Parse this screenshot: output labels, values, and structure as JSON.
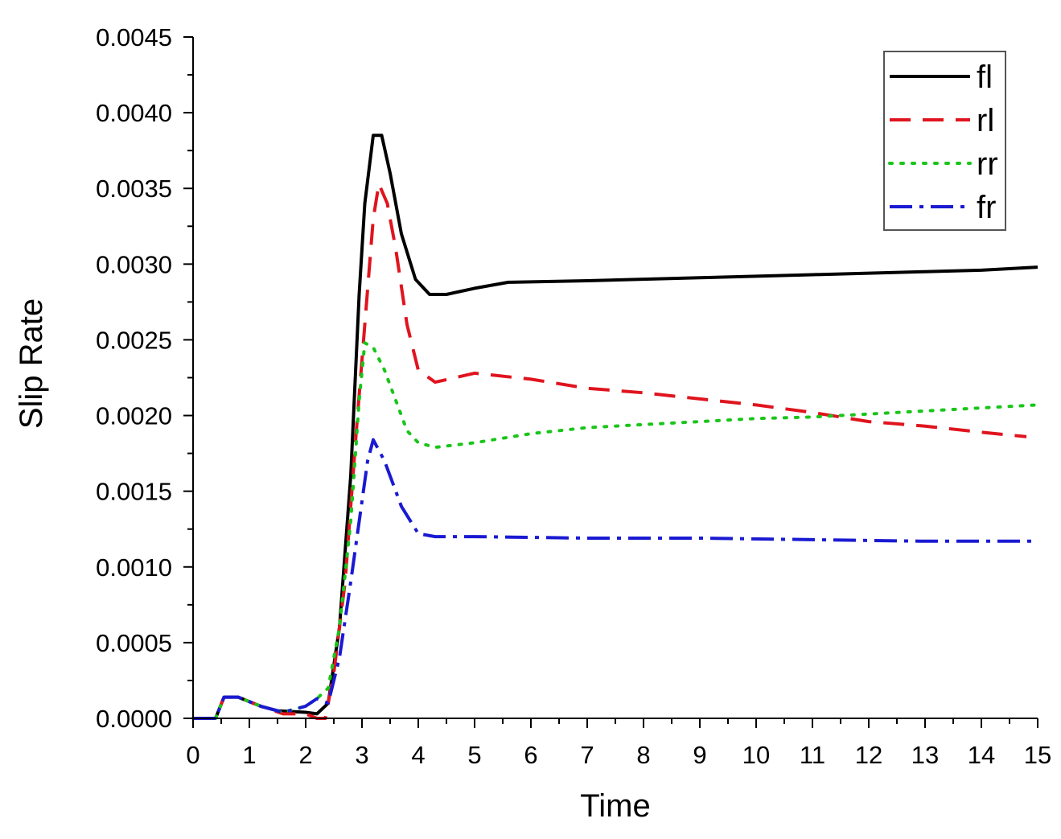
{
  "chart_data": {
    "type": "line",
    "xlabel": "Time",
    "ylabel": "Slip Rate",
    "xlim": [
      0,
      15
    ],
    "ylim": [
      0,
      0.0045
    ],
    "x_ticks": [
      "0",
      "1",
      "2",
      "3",
      "4",
      "5",
      "6",
      "7",
      "8",
      "9",
      "10",
      "11",
      "12",
      "13",
      "14",
      "15"
    ],
    "y_ticks": [
      "0.0000",
      "0.0005",
      "0.0010",
      "0.0015",
      "0.0020",
      "0.0025",
      "0.0030",
      "0.0035",
      "0.0040",
      "0.0045"
    ],
    "grid": false,
    "legend_position": "top-right",
    "series": [
      {
        "name": "fl",
        "color": "#000000",
        "style": "solid",
        "points": [
          [
            0,
            0
          ],
          [
            0.4,
            0
          ],
          [
            0.55,
            0.00014
          ],
          [
            0.8,
            0.00014
          ],
          [
            1.2,
            8e-05
          ],
          [
            1.5,
            5e-05
          ],
          [
            2.0,
            4e-05
          ],
          [
            2.2,
            3e-05
          ],
          [
            2.4,
            0.0001
          ],
          [
            2.6,
            0.0006
          ],
          [
            2.8,
            0.0016
          ],
          [
            2.95,
            0.0028
          ],
          [
            3.05,
            0.0034
          ],
          [
            3.2,
            0.00385
          ],
          [
            3.35,
            0.00385
          ],
          [
            3.5,
            0.0036
          ],
          [
            3.7,
            0.0032
          ],
          [
            3.95,
            0.0029
          ],
          [
            4.2,
            0.0028
          ],
          [
            4.5,
            0.0028
          ],
          [
            5.0,
            0.00284
          ],
          [
            5.6,
            0.00288
          ],
          [
            7,
            0.00289
          ],
          [
            9,
            0.00291
          ],
          [
            11,
            0.00293
          ],
          [
            13,
            0.00295
          ],
          [
            14,
            0.00296
          ],
          [
            15,
            0.00298
          ]
        ]
      },
      {
        "name": "rl",
        "color": "#e0141e",
        "style": "dashed",
        "points": [
          [
            0,
            0
          ],
          [
            0.4,
            0
          ],
          [
            0.55,
            0.00014
          ],
          [
            0.8,
            0.00014
          ],
          [
            1.2,
            8e-05
          ],
          [
            1.6,
            3e-05
          ],
          [
            2.0,
            3e-05
          ],
          [
            2.2,
            0.0
          ],
          [
            2.35,
            0.0
          ],
          [
            2.5,
            0.0003
          ],
          [
            2.7,
            0.0009
          ],
          [
            2.9,
            0.0019
          ],
          [
            3.05,
            0.0026
          ],
          [
            3.2,
            0.0033
          ],
          [
            3.3,
            0.00353
          ],
          [
            3.45,
            0.0034
          ],
          [
            3.6,
            0.0031
          ],
          [
            3.8,
            0.0026
          ],
          [
            4.0,
            0.0023
          ],
          [
            4.3,
            0.00222
          ],
          [
            5.0,
            0.00228
          ],
          [
            6.0,
            0.00224
          ],
          [
            7.0,
            0.00218
          ],
          [
            8.0,
            0.00215
          ],
          [
            9.0,
            0.00211
          ],
          [
            10.0,
            0.00207
          ],
          [
            11.0,
            0.00202
          ],
          [
            12.0,
            0.00196
          ],
          [
            13.0,
            0.00193
          ],
          [
            14.0,
            0.00189
          ],
          [
            14.8,
            0.00186
          ]
        ]
      },
      {
        "name": "rr",
        "color": "#19c519",
        "style": "dotted",
        "points": [
          [
            0,
            0
          ],
          [
            0.4,
            0
          ],
          [
            0.55,
            0.00014
          ],
          [
            0.8,
            0.00014
          ],
          [
            1.2,
            8e-05
          ],
          [
            1.6,
            4e-05
          ],
          [
            2.0,
            8e-05
          ],
          [
            2.2,
            0.00013
          ],
          [
            2.4,
            0.0002
          ],
          [
            2.6,
            0.0006
          ],
          [
            2.8,
            0.0013
          ],
          [
            2.95,
            0.0021
          ],
          [
            3.05,
            0.00248
          ],
          [
            3.2,
            0.00245
          ],
          [
            3.4,
            0.0023
          ],
          [
            3.6,
            0.0021
          ],
          [
            3.8,
            0.0019
          ],
          [
            4.0,
            0.00182
          ],
          [
            4.3,
            0.00179
          ],
          [
            5.0,
            0.00182
          ],
          [
            6.0,
            0.00188
          ],
          [
            7.0,
            0.00192
          ],
          [
            8.0,
            0.00194
          ],
          [
            9.0,
            0.00196
          ],
          [
            10.0,
            0.00198
          ],
          [
            11.0,
            0.00199
          ],
          [
            12.0,
            0.00201
          ],
          [
            13.0,
            0.00203
          ],
          [
            14.0,
            0.00205
          ],
          [
            15.0,
            0.00207
          ]
        ]
      },
      {
        "name": "fr",
        "color": "#1a1ad2",
        "style": "dashdot",
        "points": [
          [
            0,
            0
          ],
          [
            0.4,
            0
          ],
          [
            0.55,
            0.00014
          ],
          [
            0.8,
            0.00014
          ],
          [
            1.2,
            8e-05
          ],
          [
            1.6,
            4e-05
          ],
          [
            2.0,
            8e-05
          ],
          [
            2.2,
            0.00013
          ],
          [
            2.4,
            0.0001
          ],
          [
            2.6,
            0.0004
          ],
          [
            2.8,
            0.0009
          ],
          [
            2.95,
            0.0013
          ],
          [
            3.1,
            0.0017
          ],
          [
            3.2,
            0.00184
          ],
          [
            3.4,
            0.0017
          ],
          [
            3.7,
            0.0014
          ],
          [
            4.0,
            0.00122
          ],
          [
            4.3,
            0.0012
          ],
          [
            5.0,
            0.0012
          ],
          [
            7.0,
            0.00119
          ],
          [
            9.0,
            0.00119
          ],
          [
            11.0,
            0.00118
          ],
          [
            13.0,
            0.00117
          ],
          [
            15.0,
            0.00117
          ]
        ]
      }
    ]
  }
}
